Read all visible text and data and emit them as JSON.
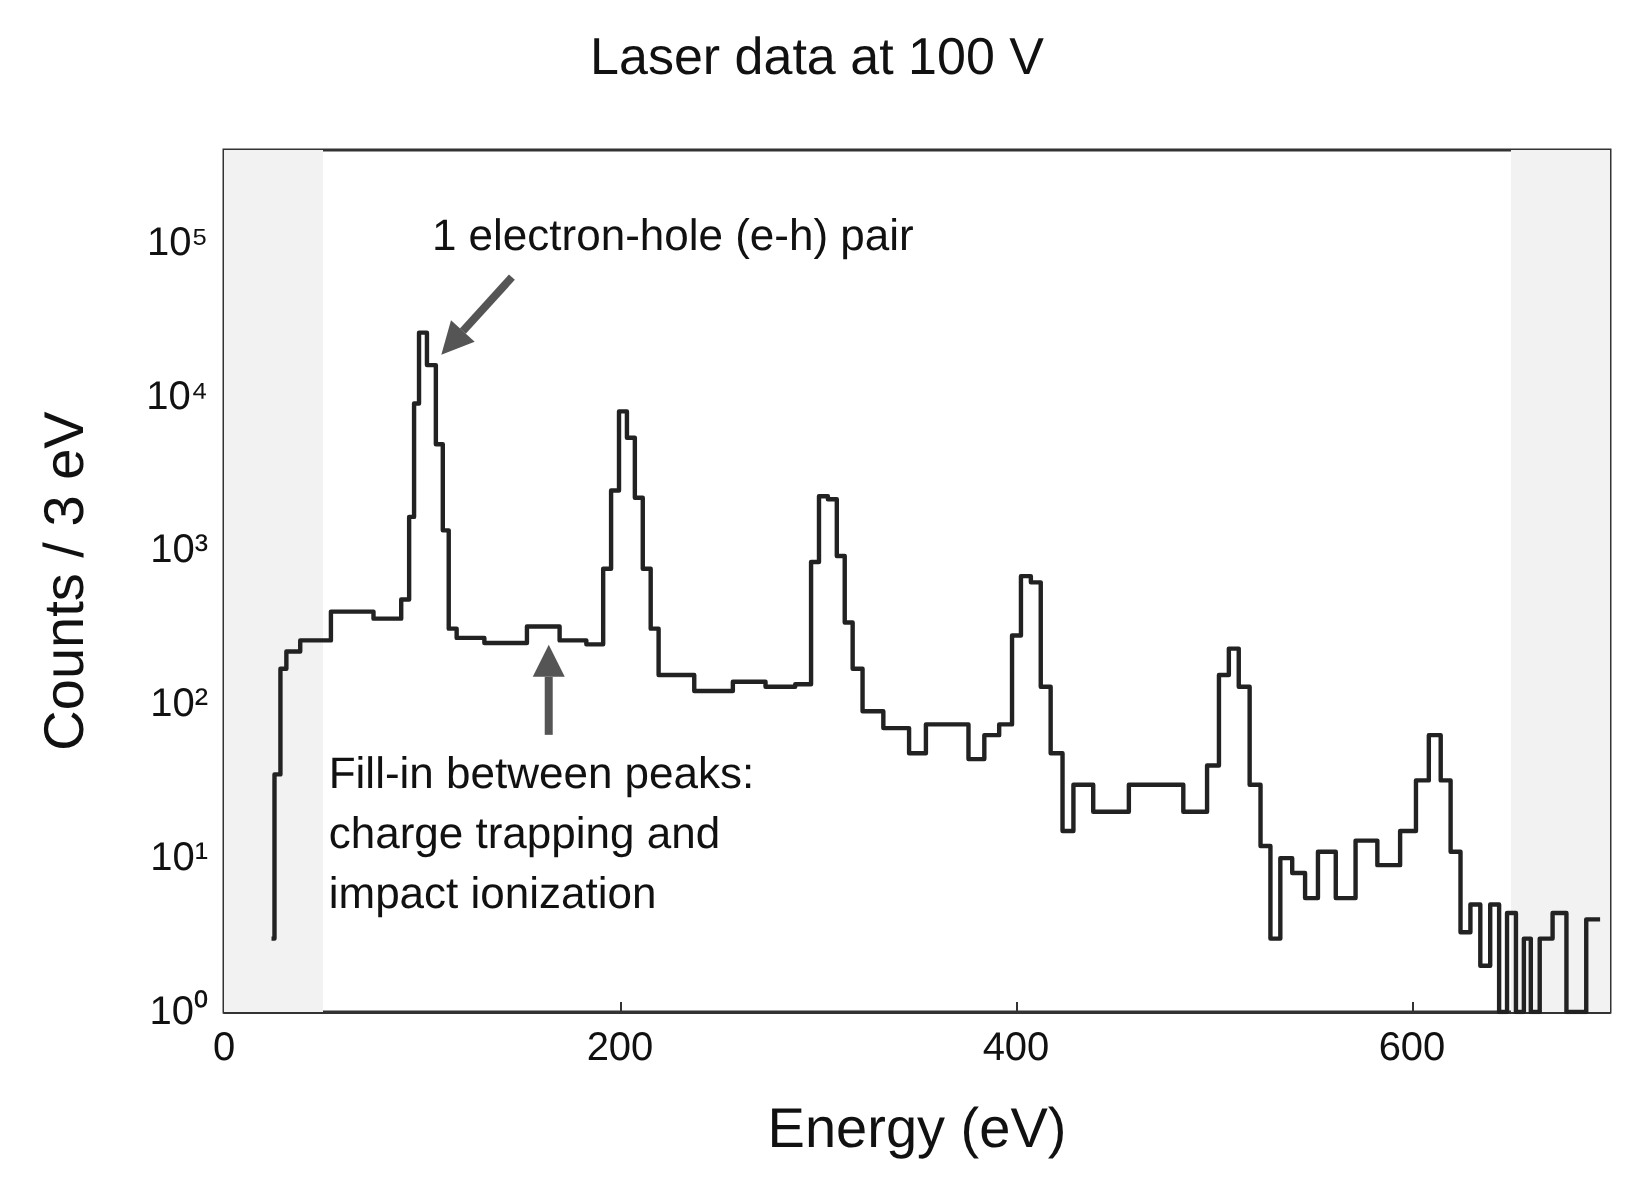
{
  "chart_data": {
    "type": "step",
    "title": "Laser data at 100 V",
    "xlabel": "Energy (eV)",
    "ylabel": "Counts / 3 eV",
    "x": [
      24,
      27,
      30,
      33,
      44,
      64,
      87,
      92,
      95,
      97,
      100,
      105,
      109,
      112,
      115,
      120,
      143,
      163,
      176,
      190,
      193,
      198,
      201,
      206,
      209,
      214,
      217,
      222,
      226,
      249,
      265,
      282,
      295,
      298,
      303,
      307,
      312,
      315,
      320,
      325,
      341,
      351,
      358,
      371,
      381,
      387,
      396,
      400,
      405,
      410,
      415,
      420,
      427,
      431,
      447,
      467,
      476,
      493,
      500,
      505,
      510,
      515,
      521,
      526,
      531,
      536,
      543,
      549,
      556,
      567,
      576,
      589,
      599,
      605,
      612,
      617,
      622,
      627,
      632,
      637,
      642,
      646,
      650,
      655,
      658,
      662,
      667,
      675,
      681,
      695
    ],
    "values": [
      3,
      35,
      170,
      220,
      260,
      400,
      360,
      480,
      1650,
      9000,
      26000,
      16000,
      4900,
      1350,
      310,
      270,
      250,
      320,
      260,
      245,
      760,
      2450,
      8000,
      5400,
      2200,
      760,
      310,
      155,
      155,
      122,
      140,
      130,
      135,
      840,
      2250,
      2150,
      920,
      340,
      170,
      90,
      70,
      48,
      74,
      74,
      44,
      63,
      74,
      280,
      680,
      620,
      130,
      48,
      15,
      30,
      20,
      30,
      30,
      20,
      40,
      155,
      230,
      130,
      30,
      12,
      3,
      10,
      8,
      5.5,
      11,
      5.5,
      13,
      9,
      15,
      32,
      63,
      32,
      11,
      3.3,
      5,
      2,
      5,
      1,
      4.4,
      1,
      3,
      1,
      3,
      4.4,
      1,
      4
    ],
    "color": "#222222",
    "line_style": "solid",
    "marker": "none",
    "log": "y",
    "xlim": [
      0,
      700
    ],
    "xticks": [
      0,
      200,
      400,
      600
    ],
    "ylim": [
      1,
      400000
    ],
    "yticks": [
      {
        "value": 1,
        "label": "10⁰"
      },
      {
        "value": 10,
        "label": "10¹"
      },
      {
        "value": 100,
        "label": "10²"
      },
      {
        "value": 1000,
        "label": "10³"
      },
      {
        "value": 10000,
        "label": "10⁴"
      },
      {
        "value": 100000,
        "label": "10⁵"
      }
    ],
    "bands": [
      {
        "axis": "x",
        "from": 0,
        "to": 50,
        "label": null,
        "color": "#f2f2f2"
      },
      {
        "axis": "x",
        "from": 650,
        "to": 700,
        "label": null,
        "color": "#f2f2f2"
      }
    ],
    "annotations": [
      {
        "text": "1 electron-hole (e-h) pair",
        "x": 105,
        "y": 16000
      },
      {
        "text": "Fill-in between peaks:\ncharge trapping and\nimpact ionization",
        "x": 164,
        "y": 300
      }
    ],
    "grid": false
  }
}
